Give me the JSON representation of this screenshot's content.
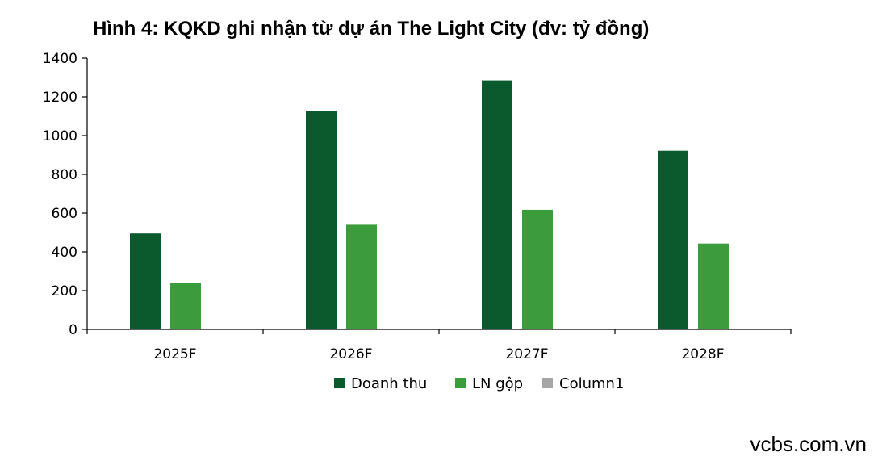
{
  "title": "Hình 4: KQKD ghi nhận từ dự án The Light City (đv: tỷ đồng)",
  "source": "vcbs.com.vn",
  "chart_data": {
    "type": "bar",
    "categories": [
      "2025F",
      "2026F",
      "2027F",
      "2028F"
    ],
    "series": [
      {
        "name": "Doanh thu",
        "color": "#0b5a2e",
        "values": [
          495,
          1125,
          1285,
          922
        ]
      },
      {
        "name": "LN gộp",
        "color": "#3a9c3a",
        "values": [
          240,
          540,
          617,
          443
        ]
      },
      {
        "name": "Column1",
        "color": "#a6a6a6",
        "values": [
          null,
          null,
          null,
          null
        ]
      }
    ],
    "ylim": [
      0,
      1400
    ],
    "yticks": [
      0,
      200,
      400,
      600,
      800,
      1000,
      1200,
      1400
    ],
    "grid": false,
    "legend_position": "bottom"
  }
}
